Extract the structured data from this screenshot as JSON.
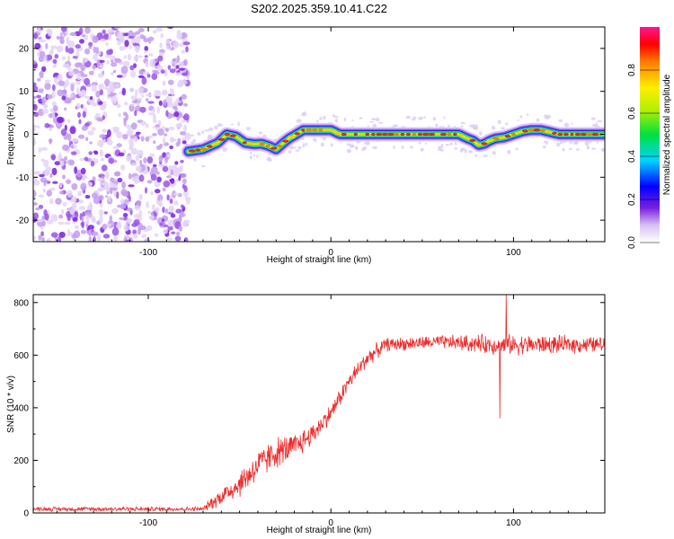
{
  "title": "S202.2025.359.10.41.C22",
  "colors": {
    "snr_line": "#ee2b2b",
    "noise_purple": "#8a2be2",
    "ridge_core": "#e8202a",
    "axis": "#000000"
  },
  "chart_data": [
    {
      "type": "heatmap",
      "name": "spectrogram",
      "xlabel": "Height of straight line (km)",
      "ylabel": "Frequency (Hz)",
      "xlim": [
        -163,
        150
      ],
      "ylim": [
        -25,
        25
      ],
      "x_ticks": [
        -100,
        0,
        100
      ],
      "y_ticks": [
        -20,
        -10,
        0,
        10,
        20
      ],
      "x_tick_labels": [
        "-100",
        "0",
        "100"
      ],
      "y_tick_labels": [
        "-20",
        "-10",
        "0",
        "10",
        "20"
      ],
      "noise_region_x": [
        -163,
        -78
      ],
      "ridge": {
        "x": [
          -78,
          -70,
          -62,
          -57,
          -52,
          -47,
          -42,
          -38,
          -34,
          -30,
          -26,
          -23,
          -19,
          -15,
          -10,
          -5,
          0,
          5,
          10,
          20,
          40,
          60,
          70,
          75,
          78,
          81,
          84,
          87,
          90,
          95,
          100,
          105,
          110,
          115,
          120,
          125,
          130,
          140,
          150
        ],
        "y": [
          -4,
          -3.5,
          -2,
          0,
          -0.5,
          -2,
          -2.3,
          -2.2,
          -2.7,
          -3.5,
          -2,
          -1,
          0,
          1,
          1,
          1,
          1,
          0,
          0,
          0,
          0,
          0,
          0,
          -1,
          -1.5,
          -2.5,
          -2.2,
          -1.5,
          -1,
          -0.7,
          0,
          0.7,
          1,
          1,
          0.5,
          0,
          0,
          0,
          0
        ]
      },
      "colorbar": {
        "label": "Normalized spectral amplitude",
        "ticks": [
          0.0,
          0.2,
          0.4,
          0.6,
          0.8
        ],
        "tick_labels": [
          "0.0",
          "0.2",
          "0.4",
          "0.6",
          "0.8"
        ],
        "range": [
          0,
          1
        ]
      }
    },
    {
      "type": "line",
      "name": "snr",
      "xlabel": "Height of straight line (km)",
      "ylabel": "SNR (10 * v/v)",
      "xlim": [
        -163,
        150
      ],
      "ylim": [
        0,
        830
      ],
      "x_ticks": [
        -100,
        0,
        100
      ],
      "y_ticks": [
        0,
        200,
        400,
        600,
        800
      ],
      "x_tick_labels": [
        "-100",
        "0",
        "100"
      ],
      "y_tick_labels": [
        "0",
        "200",
        "400",
        "600",
        "800"
      ],
      "series": [
        {
          "name": "SNR",
          "trend_x": [
            -163,
            -70,
            -65,
            -50,
            -40,
            -30,
            -20,
            -10,
            0,
            10,
            20,
            30,
            60,
            90,
            100,
            150
          ],
          "trend_y": [
            15,
            15,
            40,
            110,
            180,
            230,
            250,
            300,
            380,
            500,
            590,
            640,
            650,
            640,
            640,
            640
          ],
          "noise_amplitude": [
            10,
            10,
            30,
            60,
            70,
            70,
            60,
            50,
            40,
            40,
            40,
            30,
            30,
            45,
            45,
            35
          ],
          "notable_points": [
            {
              "x": 92.5,
              "y": 360
            },
            {
              "x": 96,
              "y": 830
            }
          ]
        }
      ]
    }
  ]
}
